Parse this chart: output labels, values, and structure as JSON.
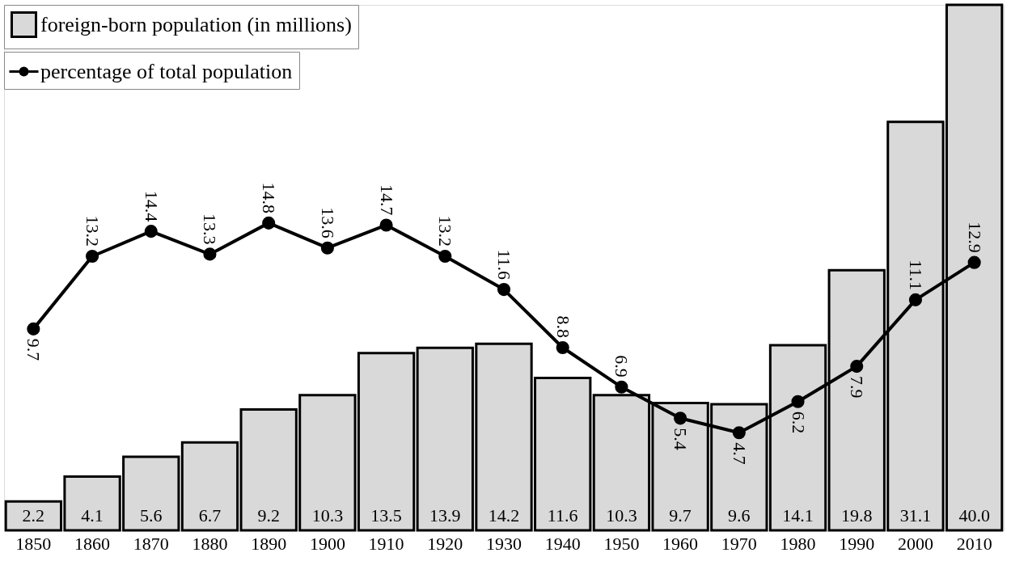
{
  "chart_data": {
    "type": "bar",
    "categories": [
      "1850",
      "1860",
      "1870",
      "1880",
      "1890",
      "1900",
      "1910",
      "1920",
      "1930",
      "1940",
      "1950",
      "1960",
      "1970",
      "1980",
      "1990",
      "2000",
      "2010"
    ],
    "series": [
      {
        "name": "foreign-born population (in millions)",
        "color": "#d9d9d9",
        "values": [
          2.2,
          4.1,
          5.6,
          6.7,
          9.2,
          10.3,
          13.5,
          13.9,
          14.2,
          11.6,
          10.3,
          9.7,
          9.6,
          14.1,
          19.8,
          31.1,
          40.0
        ],
        "value_labels": [
          "2.2",
          "4.1",
          "5.6",
          "6.7",
          "9.2",
          "10.3",
          "13.5",
          "13.9",
          "14.2",
          "11.6",
          "10.3",
          "9.7",
          "9.6",
          "14.1",
          "19.8",
          "31.1",
          "40.0"
        ]
      },
      {
        "name": "percentage of total population",
        "type": "line",
        "axis": "y2",
        "color": "#000000",
        "values": [
          9.7,
          13.2,
          14.4,
          13.3,
          14.8,
          13.6,
          14.7,
          13.2,
          11.6,
          8.8,
          6.9,
          5.4,
          4.7,
          6.2,
          7.9,
          11.1,
          12.9
        ]
      }
    ],
    "tick_labels": "x",
    "data_labels": true,
    "marker": "circle",
    "line_style": "solid",
    "legend": "top left",
    "grid": false
  }
}
